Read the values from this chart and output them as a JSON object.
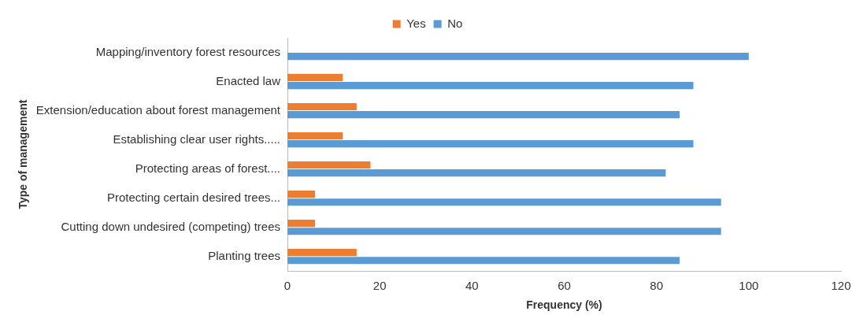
{
  "chart_data": {
    "type": "bar",
    "orientation": "horizontal",
    "xlabel": "Frequency (%)",
    "ylabel": "Type of management",
    "categories": [
      "Mapping/inventory forest resources",
      "Enacted law",
      "Extension/education about forest management",
      "Establishing clear user rights.....",
      "Protecting areas of forest....",
      "Protecting certain desired trees...",
      "Cutting down undesired (competing) trees",
      "Planting trees"
    ],
    "series": [
      {
        "name": "Yes",
        "color": "#ed7d31",
        "values": [
          0,
          12,
          15,
          12,
          18,
          6,
          6,
          15
        ]
      },
      {
        "name": "No",
        "color": "#5b9bd5",
        "values": [
          100,
          88,
          85,
          88,
          82,
          94,
          94,
          85
        ]
      }
    ],
    "xlim": [
      0,
      120
    ],
    "xticks": [
      0,
      20,
      40,
      60,
      80,
      100,
      120
    ],
    "grid": false,
    "legend": "top"
  }
}
